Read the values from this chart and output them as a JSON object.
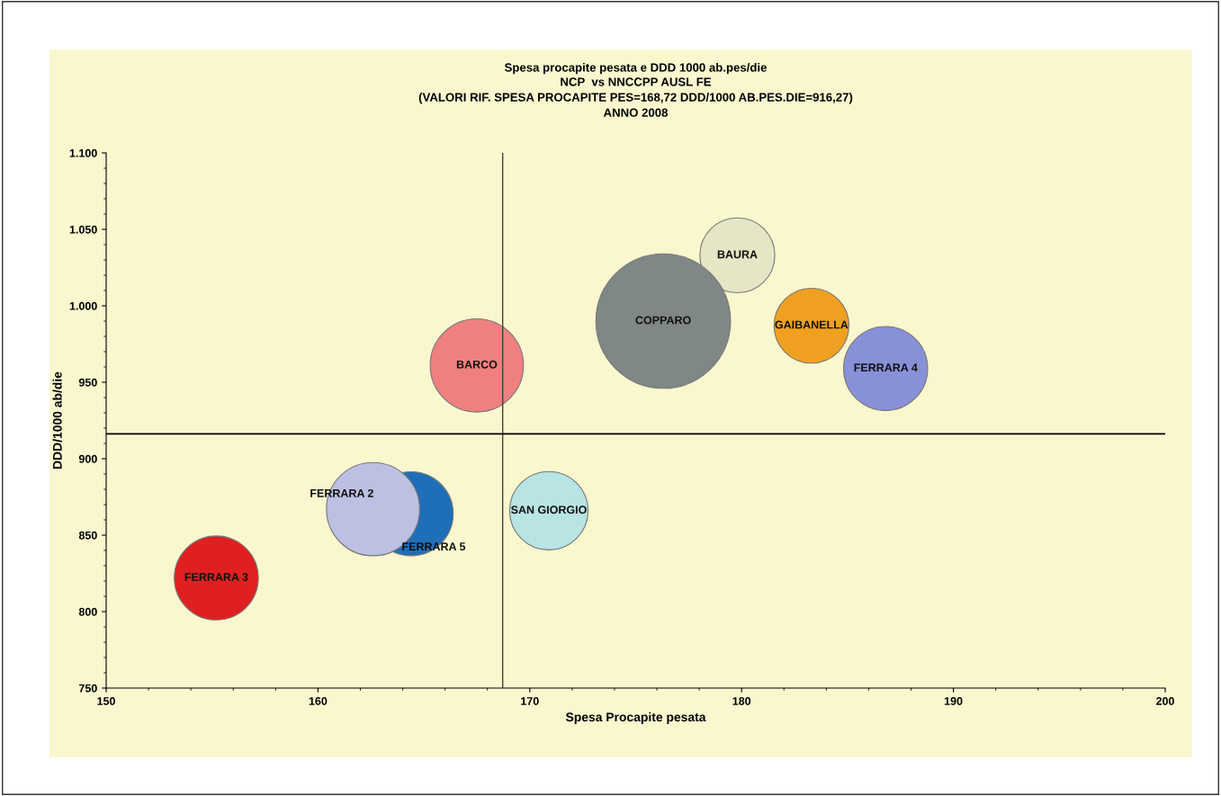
{
  "chart_data": {
    "type": "bubble",
    "title": "Spesa procapite pesata e DDD 1000 ab.pes/die",
    "subtitle": "NCP  vs NNCCPP AUSL FE\n(VALORI RIF. SPESA PROCAPITE PES=168,72 DDD/1000 AB.PES.DIE=916,27)\nANNO 2008",
    "xlabel": "Spesa Procapite pesata",
    "ylabel": "DDD/1000 ab/die",
    "series": [
      {
        "name": "BAURA",
        "color": "#e6e6c6",
        "x": [
          179.8
        ],
        "values": [
          1033
        ],
        "sizes": [
          0.31
        ]
      },
      {
        "name": "COPPARO",
        "color": "#7f8787",
        "x": [
          176.3
        ],
        "values": [
          990
        ],
        "sizes": [
          1
        ]
      },
      {
        "name": "GAIBANELLA",
        "color": "#f0a020",
        "x": [
          183.3
        ],
        "values": [
          987
        ],
        "sizes": [
          0.31
        ]
      },
      {
        "name": "FERRARA 4",
        "color": "#8890d8",
        "x": [
          186.8
        ],
        "values": [
          959
        ],
        "sizes": [
          0.39
        ]
      },
      {
        "name": "BARCO",
        "color": "#f08080",
        "x": [
          167.5
        ],
        "values": [
          961
        ],
        "sizes": [
          0.48
        ]
      },
      {
        "name": "FERRARA 5",
        "color": "#1f6fb8",
        "x": [
          164.4
        ],
        "values": [
          864
        ],
        "sizes": [
          0.39
        ]
      },
      {
        "name": "FERRARA 2",
        "color": "#bcc0e2",
        "x": [
          162.6
        ],
        "values": [
          867
        ],
        "sizes": [
          0.48
        ]
      },
      {
        "name": "SAN GIORGIO",
        "color": "#b8e4e4",
        "x": [
          170.9
        ],
        "values": [
          866
        ],
        "sizes": [
          0.34
        ]
      },
      {
        "name": "FERRARA 3",
        "color": "#e02020",
        "x": [
          155.2
        ],
        "values": [
          822
        ],
        "sizes": [
          0.39
        ]
      }
    ],
    "xlim": [
      150,
      200
    ],
    "xticks": [
      150,
      160,
      170,
      180,
      190,
      200
    ],
    "ylim": [
      750,
      1100
    ],
    "yticks": [
      750,
      800,
      850,
      900,
      950,
      {
        "value": 1000,
        "label": "1.000"
      },
      {
        "value": 1050,
        "label": "1.050"
      },
      {
        "value": 1100,
        "label": "1.100"
      }
    ],
    "ref_lines": [
      {
        "axis": "x",
        "value": 168.72,
        "color": "#404040"
      },
      {
        "axis": "y",
        "value": 916.27,
        "color": "#000000"
      }
    ],
    "grid": false
  }
}
